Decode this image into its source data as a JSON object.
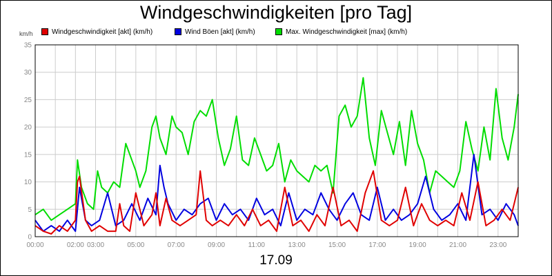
{
  "chart_data": {
    "type": "line",
    "title": "Windgeschwindigkeiten [pro Tag]",
    "unit": "km/h",
    "date": "17.09",
    "ylim": [
      0,
      35
    ],
    "yticks": [
      0,
      5,
      10,
      15,
      20,
      25,
      30,
      35
    ],
    "xlim": [
      0,
      24
    ],
    "xticks": [
      {
        "hour": 0,
        "label": "00:00"
      },
      {
        "hour": 2,
        "label": "02:00"
      },
      {
        "hour": 3,
        "label": "03:00"
      },
      {
        "hour": 5,
        "label": "05:00"
      },
      {
        "hour": 7,
        "label": "07:00"
      },
      {
        "hour": 9,
        "label": "09:00"
      },
      {
        "hour": 11,
        "label": "11:00"
      },
      {
        "hour": 13,
        "label": "13:00"
      },
      {
        "hour": 15,
        "label": "15:00"
      },
      {
        "hour": 17,
        "label": "17:00"
      },
      {
        "hour": 19,
        "label": "19:00"
      },
      {
        "hour": 21,
        "label": "21:00"
      },
      {
        "hour": 23,
        "label": "23:00"
      }
    ],
    "grid": true,
    "legend_position": "top",
    "series": [
      {
        "name": "Windgeschwindigkeit [akt] (km/h)",
        "color": "#e00000",
        "x": [
          0,
          0.4,
          0.8,
          1.2,
          1.6,
          2.0,
          2.1,
          2.2,
          2.5,
          2.8,
          3.2,
          3.6,
          4.0,
          4.2,
          4.4,
          4.7,
          5.0,
          5.4,
          5.8,
          6.0,
          6.2,
          6.5,
          6.8,
          7.2,
          7.6,
          8.0,
          8.2,
          8.5,
          8.8,
          9.2,
          9.6,
          10.0,
          10.4,
          10.8,
          11.2,
          11.6,
          12.0,
          12.4,
          12.8,
          13.2,
          13.6,
          14.0,
          14.4,
          14.8,
          15.2,
          15.6,
          16.0,
          16.4,
          16.8,
          17.2,
          17.6,
          18.0,
          18.4,
          18.8,
          19.2,
          19.6,
          20.0,
          20.4,
          20.8,
          21.2,
          21.6,
          22.0,
          22.4,
          22.8,
          23.2,
          23.6,
          24.0
        ],
        "y": [
          2,
          1,
          0.5,
          2,
          1,
          3,
          10,
          11,
          3,
          1,
          2,
          1,
          1,
          6,
          2,
          1,
          8,
          2,
          4,
          8,
          2,
          7,
          3,
          2,
          3,
          4,
          12,
          3,
          2,
          3,
          2,
          4,
          2,
          5,
          2,
          3,
          1,
          9,
          2,
          3,
          1,
          4,
          2,
          9,
          2,
          3,
          1,
          8,
          12,
          3,
          2,
          3,
          9,
          2,
          6,
          3,
          2,
          3,
          2,
          8,
          3,
          10,
          2,
          3,
          5,
          3,
          9
        ]
      },
      {
        "name": "Wind Böen [akt] (km/h)",
        "color": "#0000e0",
        "x": [
          0,
          0.4,
          0.8,
          1.2,
          1.6,
          2.0,
          2.2,
          2.5,
          2.8,
          3.2,
          3.6,
          4.0,
          4.4,
          4.8,
          5.2,
          5.6,
          6.0,
          6.2,
          6.4,
          6.6,
          7.0,
          7.4,
          7.8,
          8.2,
          8.6,
          9.0,
          9.4,
          9.8,
          10.2,
          10.6,
          11.0,
          11.4,
          11.8,
          12.2,
          12.6,
          13.0,
          13.4,
          13.8,
          14.2,
          14.6,
          15.0,
          15.4,
          15.8,
          16.2,
          16.6,
          17.0,
          17.4,
          17.8,
          18.2,
          18.6,
          19.0,
          19.4,
          19.8,
          20.2,
          20.6,
          21.0,
          21.4,
          21.8,
          22.2,
          22.6,
          23.0,
          23.4,
          23.8,
          24.0
        ],
        "y": [
          3,
          1,
          2,
          1,
          3,
          1,
          9,
          3,
          2,
          3,
          8,
          2,
          3,
          6,
          3,
          7,
          4,
          13,
          9,
          6,
          3,
          5,
          4,
          6,
          7,
          3,
          6,
          4,
          5,
          3,
          7,
          4,
          5,
          2,
          8,
          3,
          5,
          4,
          8,
          5,
          3,
          6,
          8,
          4,
          3,
          9,
          3,
          5,
          3,
          4,
          6,
          11,
          5,
          3,
          4,
          6,
          3,
          15,
          4,
          5,
          3,
          6,
          4,
          2
        ]
      },
      {
        "name": "Max. Windgeschwindigkeit [max] (km/h)",
        "color": "#00dd00",
        "x": [
          0,
          0.4,
          0.8,
          1.2,
          1.6,
          2.0,
          2.1,
          2.3,
          2.6,
          2.9,
          3.1,
          3.3,
          3.6,
          3.9,
          4.2,
          4.5,
          4.8,
          5.0,
          5.2,
          5.5,
          5.8,
          6.0,
          6.2,
          6.5,
          6.8,
          7.0,
          7.3,
          7.6,
          7.9,
          8.2,
          8.5,
          8.8,
          9.1,
          9.4,
          9.7,
          10.0,
          10.3,
          10.6,
          10.9,
          11.2,
          11.5,
          11.8,
          12.1,
          12.4,
          12.7,
          13.0,
          13.3,
          13.6,
          13.9,
          14.2,
          14.5,
          14.8,
          15.1,
          15.4,
          15.7,
          16.0,
          16.3,
          16.6,
          16.9,
          17.2,
          17.5,
          17.8,
          18.1,
          18.4,
          18.7,
          19.0,
          19.3,
          19.6,
          19.9,
          20.2,
          20.5,
          20.8,
          21.1,
          21.4,
          21.7,
          22.0,
          22.3,
          22.6,
          22.9,
          23.2,
          23.5,
          23.8,
          24.0
        ],
        "y": [
          4,
          5,
          3,
          4,
          5,
          6,
          14,
          9,
          6,
          5,
          12,
          9,
          8,
          10,
          9,
          17,
          14,
          12,
          9,
          12,
          20,
          22,
          18,
          15,
          22,
          20,
          19,
          15,
          21,
          23,
          22,
          25,
          18,
          13,
          16,
          22,
          14,
          13,
          18,
          15,
          12,
          13,
          17,
          10,
          14,
          12,
          11,
          10,
          13,
          12,
          13,
          8,
          22,
          24,
          20,
          22,
          29,
          18,
          13,
          23,
          19,
          15,
          21,
          13,
          23,
          17,
          14,
          8,
          12,
          11,
          10,
          9,
          12,
          21,
          16,
          12,
          20,
          14,
          27,
          18,
          14,
          20,
          26
        ]
      }
    ]
  }
}
